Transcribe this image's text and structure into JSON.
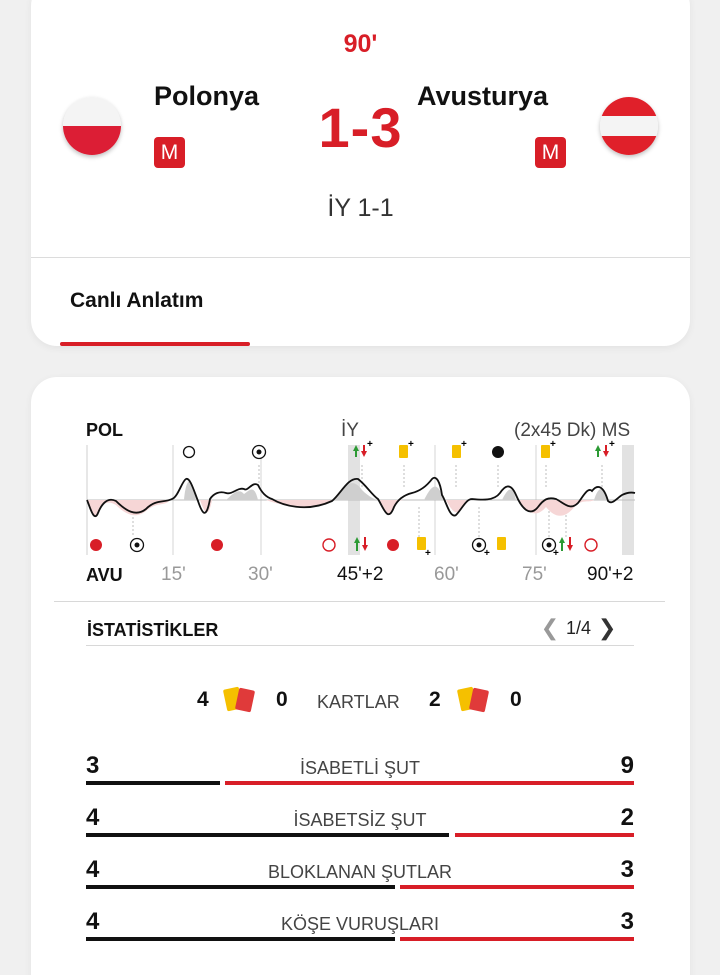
{
  "match": {
    "minute": "90'",
    "home": {
      "name": "Polonya",
      "badge": "M"
    },
    "away": {
      "name": "Avusturya",
      "badge": "M"
    },
    "score": "1-3",
    "halftime": "İY 1-1",
    "tab": "Canlı Anlatım"
  },
  "timeline": {
    "home_code": "POL",
    "away_code": "AVU",
    "half_label": "İY",
    "duration_label": "(2x45 Dk) MS",
    "ticks": [
      "15'",
      "30'",
      "45'+2",
      "60'",
      "75'",
      "90'+2"
    ]
  },
  "stats": {
    "title": "İSTATİSTİKLER",
    "page": "1/4",
    "cards": {
      "label": "KARTLAR",
      "home_yellow": "4",
      "home_red": "0",
      "away_yellow": "2",
      "away_red": "0"
    },
    "rows": [
      {
        "label": "İSABETLİ ŞUT",
        "home": "3",
        "away": "9"
      },
      {
        "label": "İSABETSİZ ŞUT",
        "home": "4",
        "away": "2"
      },
      {
        "label": "BLOKLANAN ŞUTLAR",
        "home": "4",
        "away": "3"
      },
      {
        "label": "KÖŞE VURUŞLARI",
        "home": "4",
        "away": "3"
      }
    ]
  },
  "colors": {
    "accent": "#d81e27",
    "home_bar": "#111111",
    "away_bar": "#d81e27",
    "yellow_card": "#f5c000"
  }
}
